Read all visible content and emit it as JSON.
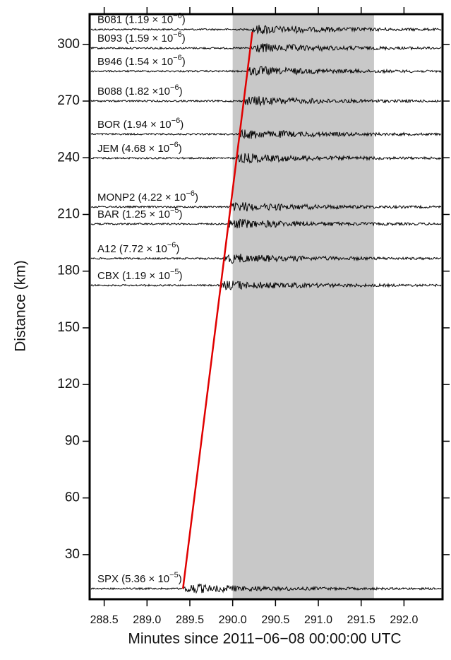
{
  "chart_data": {
    "type": "seismogram",
    "xlabel": "Minutes since 2011−06−08 00:00:00 UTC",
    "ylabel": "Distance (km)",
    "xlim": [
      288.33,
      292.45
    ],
    "ylim": [
      6.4,
      316
    ],
    "xticks": [
      288.5,
      {
        "value": 289,
        "label": "289.0"
      },
      289.5,
      {
        "value": 290,
        "label": "290.0"
      },
      290.5,
      {
        "value": 291,
        "label": "291.0"
      },
      291.5,
      {
        "value": 292,
        "label": "292.0"
      }
    ],
    "yticks": [
      30,
      60,
      90,
      120,
      150,
      180,
      210,
      240,
      270,
      300
    ],
    "window": [
      290.0,
      291.65
    ],
    "window_color": "#c8c8c8",
    "moveout": {
      "x": [
        289.42,
        290.23
      ],
      "y": [
        12.05,
        306.7
      ],
      "color": "#e00000"
    },
    "trace_color": "#000000",
    "stations": [
      {
        "label": "B081 (1.19 × 10",
        "sup": "−6",
        "tail": ")",
        "distance": 307.9
      },
      {
        "label": "B093 (1.59 × 10",
        "sup": "−6",
        "tail": ")",
        "distance": 298
      },
      {
        "label": "B946 (1.54 × 10",
        "sup": "−6",
        "tail": ")",
        "distance": 285.8
      },
      {
        "label": "B088 (1.82 ×10",
        "sup": "−6",
        "tail": ")",
        "distance": 270
      },
      {
        "label": "BOR (1.94 × 10",
        "sup": "−6",
        "tail": ")",
        "distance": 252.5
      },
      {
        "label": "JEM (4.68 × 10",
        "sup": "−6",
        "tail": ")",
        "distance": 239.8
      },
      {
        "label": "MONP2 (4.22 × 10",
        "sup": "−6",
        "tail": ")",
        "distance": 214
      },
      {
        "label": "BAR (1.25 × 10",
        "sup": "−5",
        "tail": ")",
        "distance": 205
      },
      {
        "label": "A12 (7.72 × 10",
        "sup": "−6",
        "tail": ")",
        "distance": 186.7
      },
      {
        "label": "CBX (1.19 × 10",
        "sup": "−5",
        "tail": ")",
        "distance": 172.5
      },
      {
        "label": "SPX (5.36 × 10",
        "sup": "−5",
        "tail": ")",
        "distance": 12
      }
    ]
  }
}
